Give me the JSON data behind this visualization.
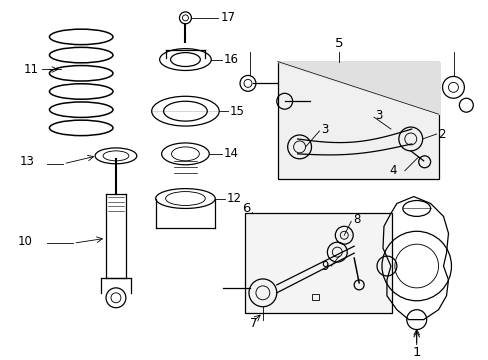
{
  "bg_color": "#ffffff",
  "fig_width": 4.89,
  "fig_height": 3.6,
  "dpi": 100,
  "line_color": "#000000",
  "gray_fill": "#e8e8e8",
  "font_size": 8.5
}
